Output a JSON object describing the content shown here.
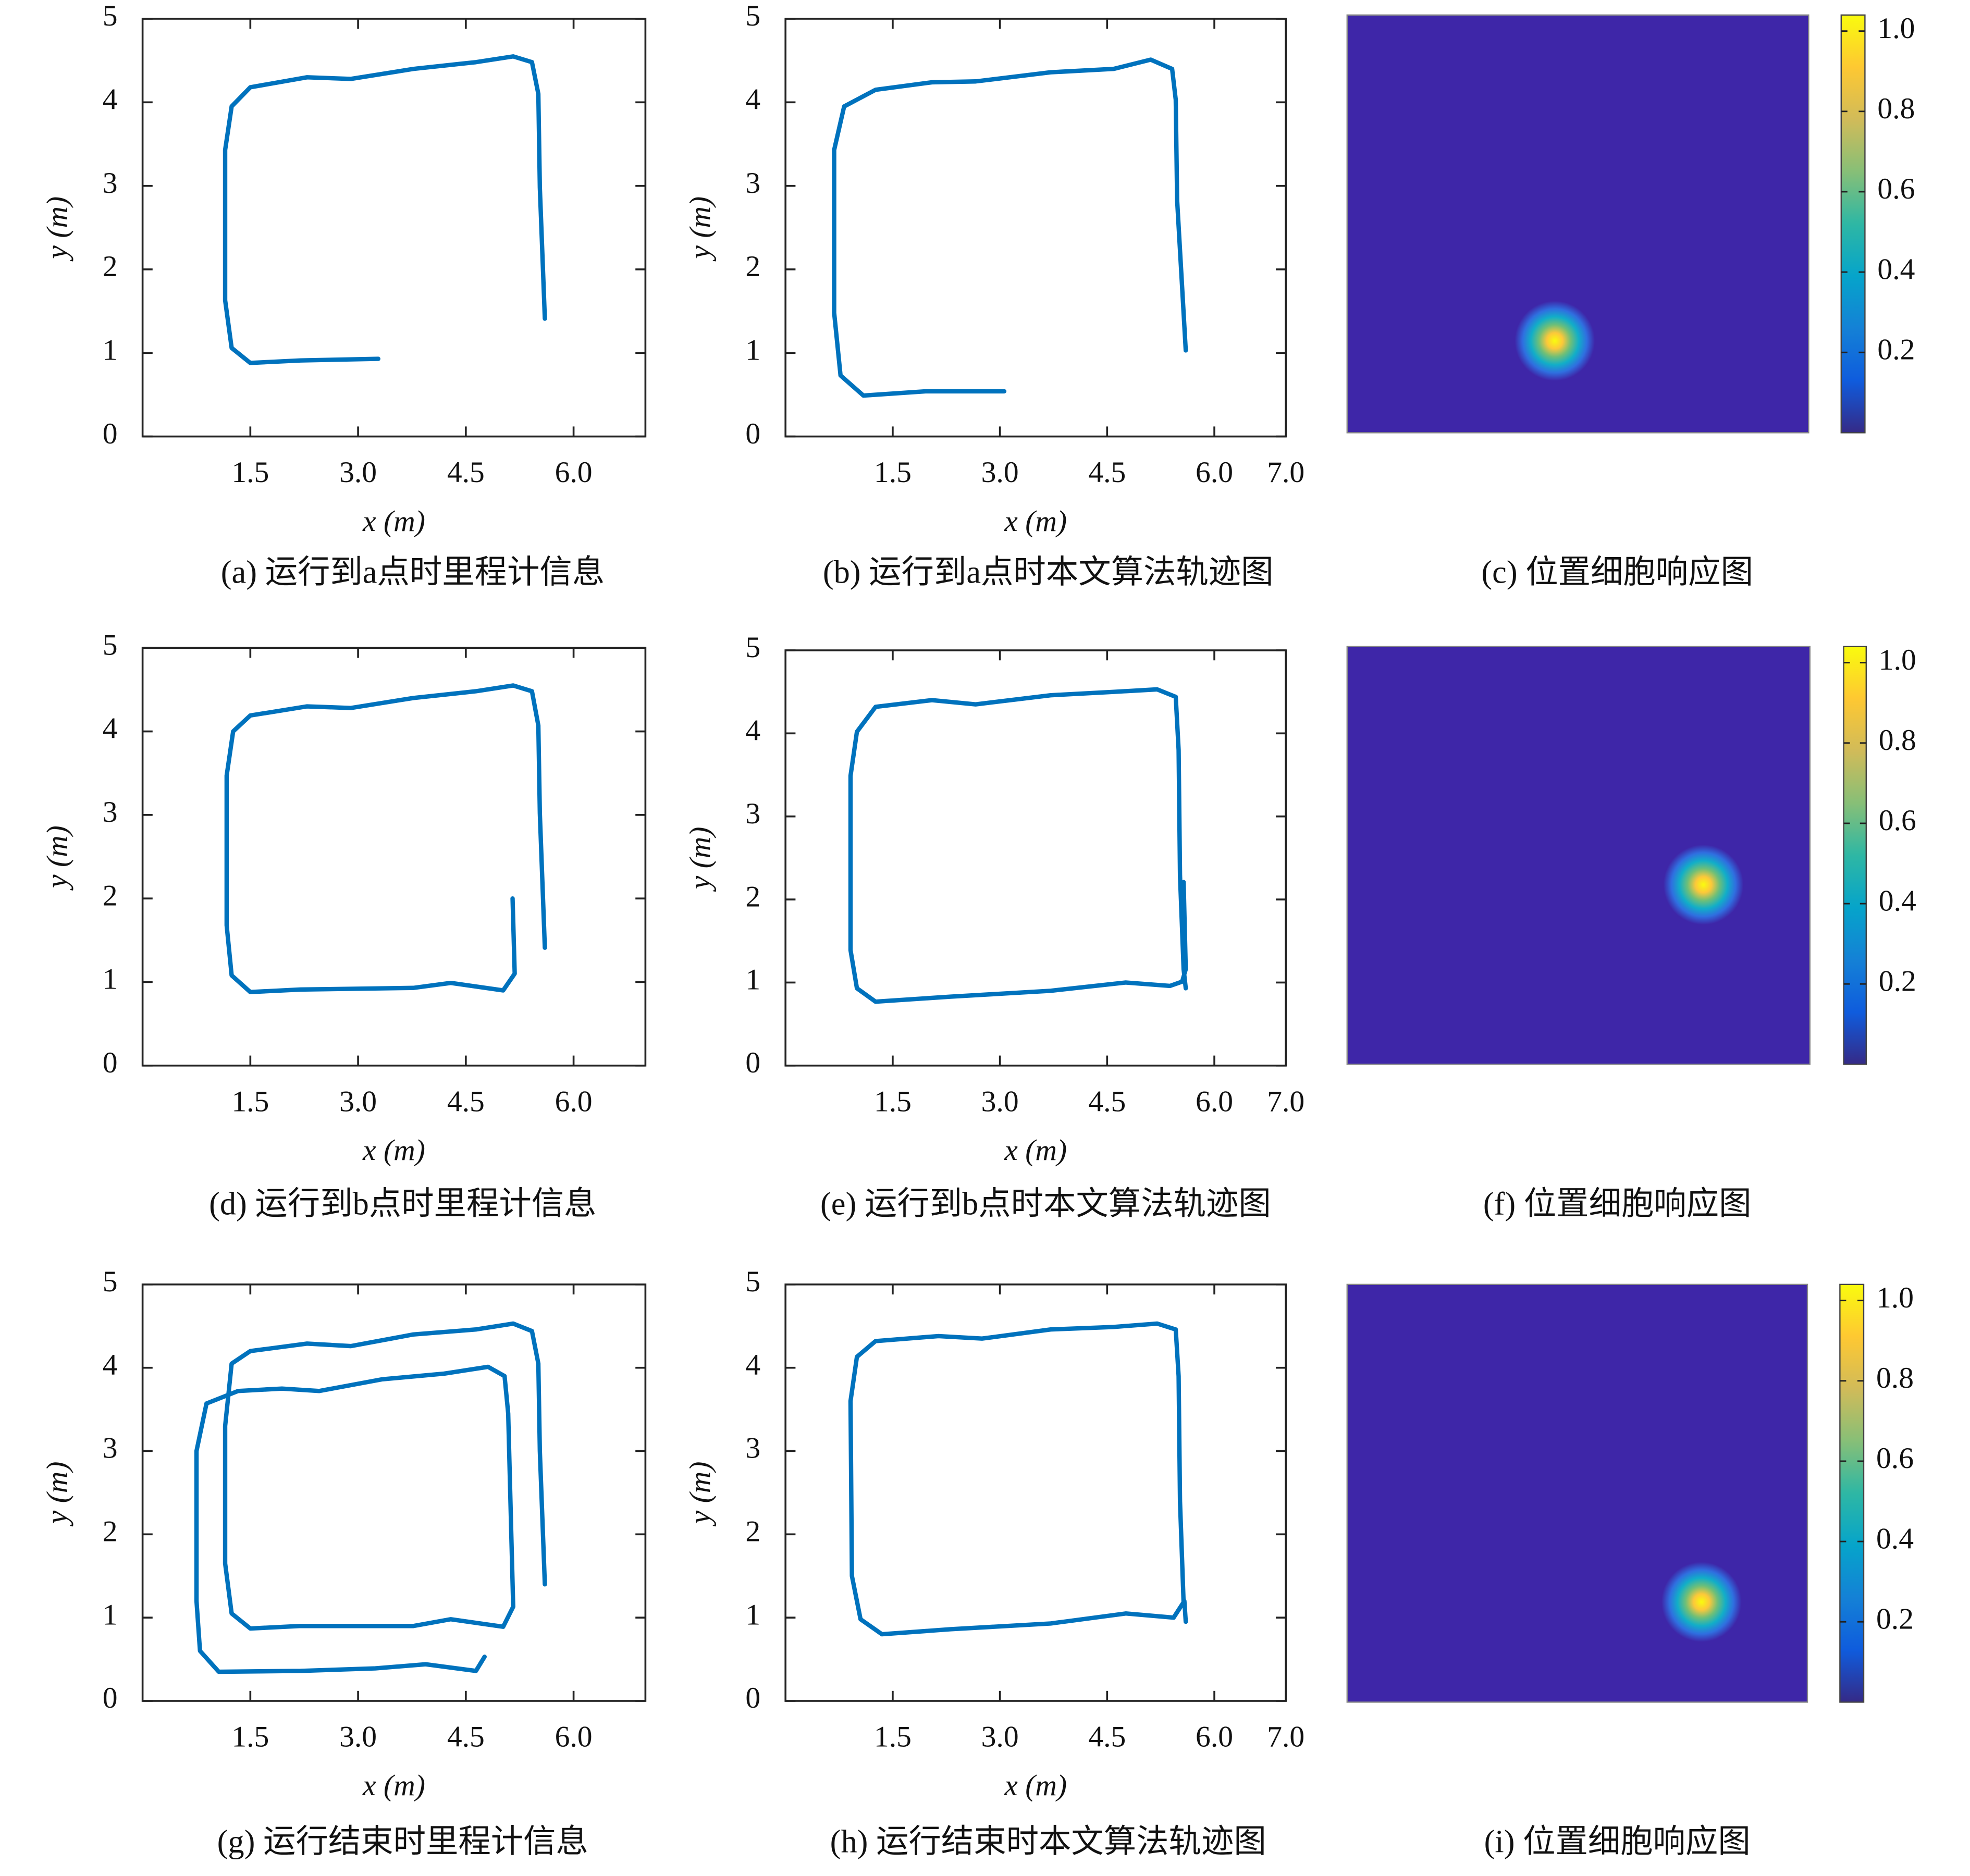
{
  "chart_data": [
    {
      "type": "line",
      "caption": "(a) 运行到a点时里程计信息",
      "xlabel": "x (m)",
      "ylabel": "y (m)",
      "xlim": [
        0,
        7
      ],
      "ylim": [
        0,
        5
      ],
      "xticks": [
        1.5,
        {
          "value": 3,
          "label": "3.0"
        },
        4.5,
        {
          "value": 6,
          "label": "6.0"
        }
      ],
      "yticks": [
        0,
        1,
        2,
        3,
        4,
        5
      ],
      "x": [
        3.28,
        2.2,
        1.5,
        1.24,
        1.15,
        1.15,
        1.24,
        1.5,
        2.29,
        2.9,
        3.77,
        4.64,
        5.16,
        5.42,
        5.51,
        5.53,
        5.6
      ],
      "series": [
        {
          "color": "#0072bd",
          "values": [
            0.93,
            0.91,
            0.88,
            1.06,
            1.63,
            3.43,
            3.95,
            4.18,
            4.3,
            4.28,
            4.4,
            4.48,
            4.55,
            4.48,
            4.1,
            2.98,
            1.41
          ]
        }
      ]
    },
    {
      "type": "line",
      "caption": "(b) 运行到a点时本文算法轨迹图",
      "xlabel": "x (m)",
      "ylabel": "y (m)",
      "xlim": [
        0,
        7
      ],
      "ylim": [
        0,
        5
      ],
      "xticks": [
        1.5,
        {
          "value": 3,
          "label": "3.0"
        },
        4.5,
        {
          "value": 6,
          "label": "6.0"
        },
        {
          "value": 7,
          "label": "7.0"
        }
      ],
      "yticks": [
        0,
        1,
        2,
        3,
        4,
        5
      ],
      "x": [
        3.06,
        1.96,
        1.09,
        0.77,
        0.68,
        0.68,
        0.82,
        1.26,
        2.05,
        2.66,
        3.71,
        4.59,
        5.11,
        5.41,
        5.46,
        5.48,
        5.6
      ],
      "series": [
        {
          "color": "#0072bd",
          "values": [
            0.54,
            0.54,
            0.49,
            0.73,
            1.48,
            3.43,
            3.95,
            4.15,
            4.24,
            4.25,
            4.36,
            4.4,
            4.51,
            4.4,
            4.03,
            2.83,
            1.03
          ]
        }
      ]
    },
    {
      "type": "heatmap",
      "caption": "(c) 位置细胞响应图",
      "clim": [
        0,
        1.04
      ],
      "cticks": [
        0.2,
        0.4,
        0.6,
        0.8,
        {
          "value": 1,
          "label": "1.0"
        }
      ],
      "peak": {
        "x": 0.45,
        "y": 0.22
      }
    },
    {
      "type": "line",
      "caption": "(d) 运行到b点时里程计信息",
      "xlabel": "x (m)",
      "ylabel": "y (m)",
      "xlim": [
        0,
        7
      ],
      "ylim": [
        0,
        5
      ],
      "xticks": [
        1.5,
        {
          "value": 3,
          "label": "3.0"
        },
        4.5,
        {
          "value": 6,
          "label": "6.0"
        }
      ],
      "yticks": [
        0,
        1,
        2,
        3,
        4,
        5
      ],
      "x": [
        5.15,
        5.18,
        5.02,
        4.29,
        3.77,
        2.2,
        1.5,
        1.24,
        1.17,
        1.17,
        1.26,
        1.5,
        2.29,
        2.9,
        3.77,
        4.64,
        5.16,
        5.42,
        5.51,
        5.53,
        5.6
      ],
      "series": [
        {
          "color": "#0072bd",
          "values": [
            2.0,
            1.1,
            0.9,
            0.99,
            0.93,
            0.91,
            0.88,
            1.08,
            1.68,
            3.47,
            4.0,
            4.19,
            4.3,
            4.28,
            4.4,
            4.48,
            4.55,
            4.48,
            4.07,
            3.02,
            1.41
          ]
        }
      ]
    },
    {
      "type": "line",
      "caption": "(e) 运行到b点时本文算法轨迹图",
      "xlabel": "x (m)",
      "ylabel": "y (m)",
      "xlim": [
        0,
        7
      ],
      "ylim": [
        0,
        5
      ],
      "xticks": [
        1.5,
        {
          "value": 3,
          "label": "3.0"
        },
        4.5,
        {
          "value": 6,
          "label": "6.0"
        },
        {
          "value": 7,
          "label": "7.0"
        }
      ],
      "yticks": [
        0,
        1,
        2,
        3,
        4,
        5
      ],
      "x": [
        5.57,
        5.6,
        5.55,
        5.38,
        4.76,
        3.71,
        2.31,
        1.26,
        1.0,
        0.91,
        0.91,
        1.0,
        1.26,
        2.05,
        2.66,
        3.71,
        4.59,
        5.2,
        5.46,
        5.5,
        5.52,
        5.57,
        5.6
      ],
      "series": [
        {
          "color": "#0072bd",
          "values": [
            2.21,
            1.16,
            1.01,
            0.96,
            1.0,
            0.9,
            0.83,
            0.77,
            0.93,
            1.39,
            3.49,
            4.02,
            4.32,
            4.4,
            4.35,
            4.46,
            4.5,
            4.53,
            4.44,
            3.8,
            2.29,
            1.16,
            0.93
          ]
        }
      ]
    },
    {
      "type": "heatmap",
      "caption": "(f) 位置细胞响应图",
      "clim": [
        0,
        1.04
      ],
      "cticks": [
        0.2,
        0.4,
        0.6,
        0.8,
        {
          "value": 1,
          "label": "1.0"
        }
      ],
      "peak": {
        "x": 0.77,
        "y": 0.43
      }
    },
    {
      "type": "line",
      "caption": "(g) 运行结束时里程计信息",
      "xlabel": "x (m)",
      "ylabel": "y (m)",
      "xlim": [
        0,
        7
      ],
      "ylim": [
        0,
        5
      ],
      "xticks": [
        1.5,
        {
          "value": 3,
          "label": "3.0"
        },
        4.5,
        {
          "value": 6,
          "label": "6.0"
        }
      ],
      "yticks": [
        0,
        1,
        2,
        3,
        4,
        5
      ],
      "x": [
        4.76,
        4.64,
        3.94,
        3.24,
        2.2,
        1.06,
        0.8,
        0.75,
        0.75,
        0.89,
        1.33,
        1.94,
        2.46,
        3.33,
        4.2,
        4.81,
        5.04,
        5.09,
        5.13,
        5.16,
        5.02,
        4.29,
        3.77,
        2.2,
        1.5,
        1.24,
        1.15,
        1.15,
        1.24,
        1.5,
        2.29,
        2.9,
        3.77,
        4.64,
        5.16,
        5.42,
        5.51,
        5.53,
        5.6
      ],
      "series": [
        {
          "color": "#0072bd",
          "values": [
            0.53,
            0.36,
            0.44,
            0.39,
            0.36,
            0.35,
            0.6,
            1.2,
            3.0,
            3.57,
            3.72,
            3.75,
            3.72,
            3.86,
            3.93,
            4.01,
            3.9,
            3.45,
            2.1,
            1.13,
            0.89,
            0.98,
            0.9,
            0.9,
            0.87,
            1.05,
            1.65,
            3.3,
            4.05,
            4.2,
            4.29,
            4.26,
            4.4,
            4.46,
            4.53,
            4.44,
            4.05,
            3.0,
            1.4
          ]
        }
      ]
    },
    {
      "type": "line",
      "caption": "(h) 运行结束时本文算法轨迹图",
      "xlabel": "x (m)",
      "ylabel": "y (m)",
      "xlim": [
        0,
        7
      ],
      "ylim": [
        0,
        5
      ],
      "xticks": [
        1.5,
        {
          "value": 3,
          "label": "3.0"
        },
        4.5,
        {
          "value": 6,
          "label": "6.0"
        },
        {
          "value": 7,
          "label": "7.0"
        }
      ],
      "yticks": [
        0,
        1,
        2,
        3,
        4,
        5
      ],
      "x": [
        5.6,
        5.58,
        5.43,
        4.76,
        3.71,
        2.31,
        1.35,
        1.05,
        0.93,
        0.91,
        1.0,
        1.26,
        2.14,
        2.75,
        3.71,
        4.59,
        5.2,
        5.46,
        5.5,
        5.52,
        5.57
      ],
      "series": [
        {
          "color": "#0072bd",
          "values": [
            0.95,
            1.2,
            1.0,
            1.05,
            0.93,
            0.86,
            0.8,
            0.98,
            1.5,
            3.6,
            4.13,
            4.32,
            4.38,
            4.35,
            4.46,
            4.49,
            4.53,
            4.46,
            3.9,
            2.4,
            1.17
          ]
        }
      ]
    },
    {
      "type": "heatmap",
      "caption": "(i) 位置细胞响应图",
      "clim": [
        0,
        1.04
      ],
      "cticks": [
        0.2,
        0.4,
        0.6,
        0.8,
        {
          "value": 1,
          "label": "1.0"
        }
      ],
      "peak": {
        "x": 0.77,
        "y": 0.24
      }
    }
  ]
}
